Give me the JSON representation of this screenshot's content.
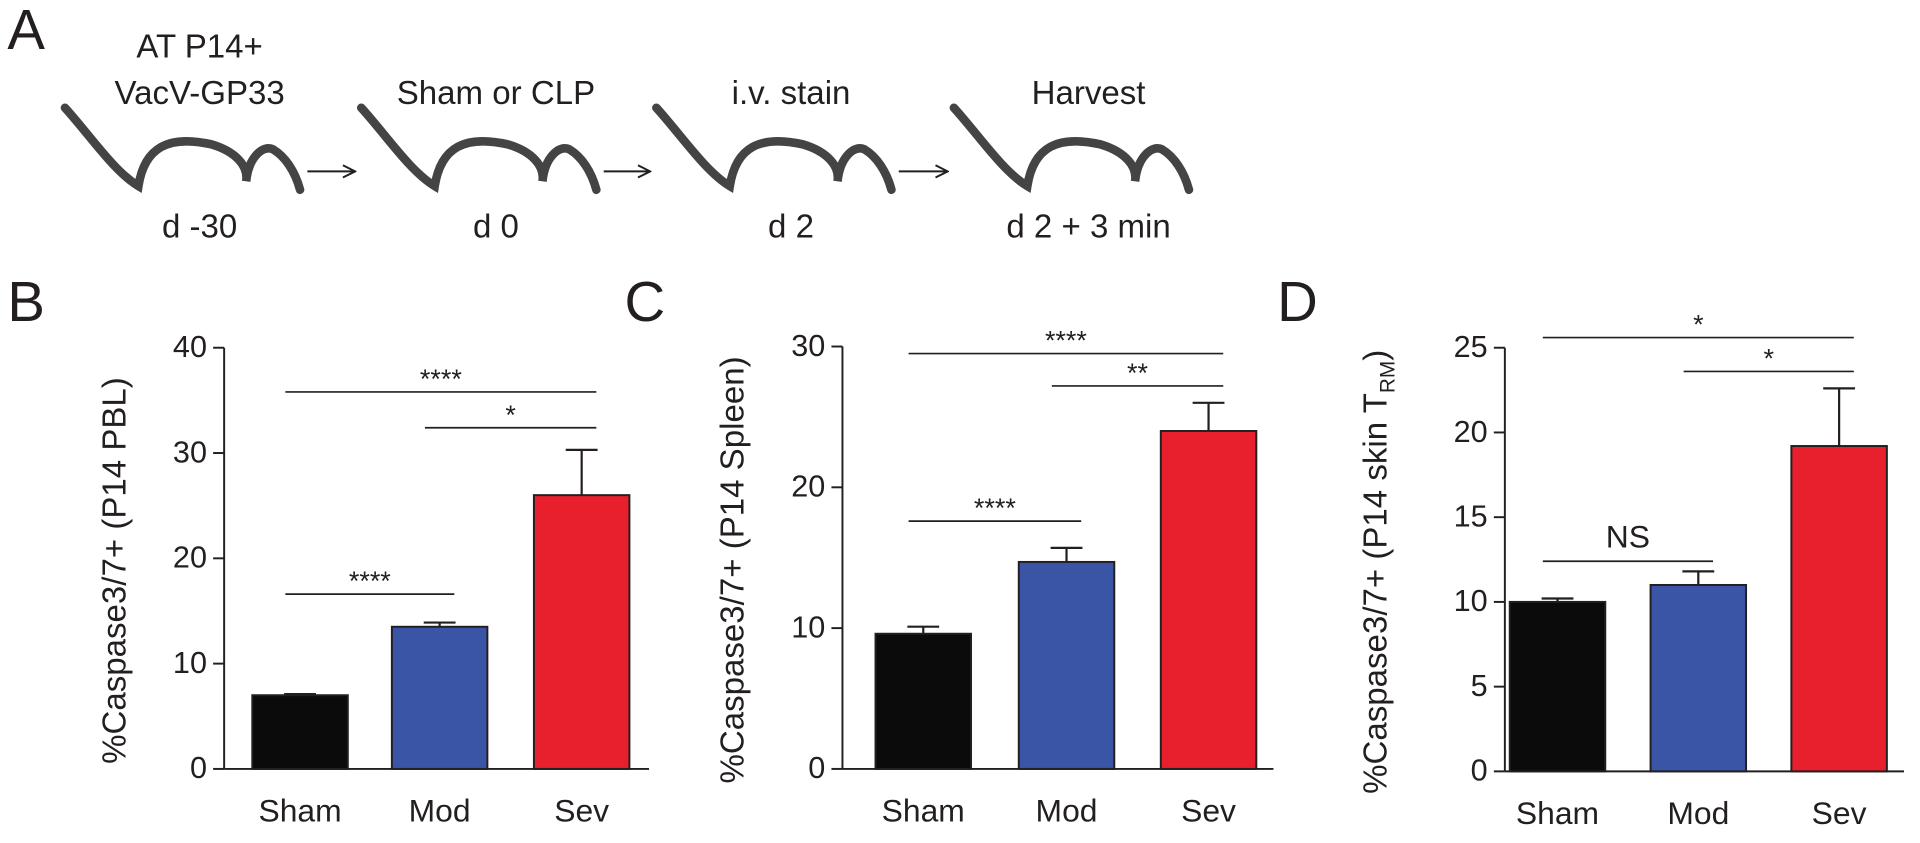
{
  "timeline": {
    "label": "A",
    "steps": [
      {
        "title_lines": [
          "AT P14+",
          "VacV-GP33"
        ],
        "day": "d -30"
      },
      {
        "title_lines": [
          "Sham or CLP"
        ],
        "day": "d 0"
      },
      {
        "title_lines": [
          "i.v. stain"
        ],
        "day": "d 2"
      },
      {
        "title_lines": [
          "Harvest"
        ],
        "day": "d 2 + 3 min"
      }
    ]
  },
  "chart_data": [
    {
      "type": "bar",
      "label": "B",
      "ylabel": "%Caspase3/7+ (P14 PBL)",
      "categories": [
        "Sham",
        "Mod",
        "Sev"
      ],
      "values": [
        7,
        13.5,
        26
      ],
      "errors": [
        0.1,
        0.4,
        4.3
      ],
      "colors": [
        "#0b0b0b",
        "#3a55a5",
        "#e8202e"
      ],
      "ylim": [
        0,
        40
      ],
      "yticks": [
        0,
        10,
        20,
        30,
        40
      ],
      "brackets": [
        {
          "from": 0,
          "to": 1,
          "y": 16.6,
          "label": "****"
        },
        {
          "from": 0,
          "to": 2,
          "y": 35.8,
          "label": "****"
        },
        {
          "from": 1,
          "to": 2,
          "y": 32.4,
          "label": "*"
        }
      ]
    },
    {
      "type": "bar",
      "label": "C",
      "ylabel": "%Caspase3/7+ (P14 Spleen)",
      "categories": [
        "Sham",
        "Mod",
        "Sev"
      ],
      "values": [
        9.6,
        14.7,
        24
      ],
      "errors": [
        0.5,
        1,
        2
      ],
      "colors": [
        "#0b0b0b",
        "#3a55a5",
        "#e8202e"
      ],
      "ylim": [
        0,
        30
      ],
      "yticks": [
        0,
        10,
        20,
        30
      ],
      "brackets": [
        {
          "from": 0,
          "to": 1,
          "y": 17.6,
          "label": "****"
        },
        {
          "from": 0,
          "to": 2,
          "y": 29.5,
          "label": "****"
        },
        {
          "from": 1,
          "to": 2,
          "y": 27.2,
          "label": "**"
        }
      ]
    },
    {
      "type": "bar",
      "label": "D",
      "ylabel": "%Caspase3/7+ (P14 skin T",
      "ylabel_subscript": "RM",
      "ylabel_suffix": ")",
      "categories": [
        "Sham",
        "Mod",
        "Sev"
      ],
      "values": [
        10,
        11,
        19.2
      ],
      "errors": [
        0.2,
        0.8,
        3.4
      ],
      "colors": [
        "#0b0b0b",
        "#3a55a5",
        "#e8202e"
      ],
      "ylim": [
        0,
        25
      ],
      "yticks": [
        0,
        5,
        10,
        15,
        20,
        25
      ],
      "brackets": [
        {
          "from": 0,
          "to": 1,
          "y": 12.4,
          "label": "NS"
        },
        {
          "from": 0,
          "to": 2,
          "y": 25.6,
          "label": "*"
        },
        {
          "from": 1,
          "to": 2,
          "y": 23.6,
          "label": "*"
        }
      ]
    }
  ]
}
